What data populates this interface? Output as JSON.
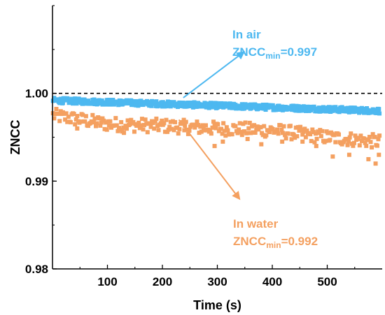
{
  "chart_data": {
    "type": "scatter",
    "xlabel": "Time (s)",
    "ylabel": "ZNCC",
    "xlim": [
      0,
      600
    ],
    "ylim": [
      0.98,
      1.01
    ],
    "x_ticks": [
      100,
      200,
      300,
      400,
      500
    ],
    "x_tick_labels": [
      "100",
      "200",
      "300",
      "400",
      "500"
    ],
    "y_ticks": [
      0.98,
      0.99,
      1.0
    ],
    "y_tick_labels": [
      "0.98",
      "0.99",
      "1.00"
    ],
    "reference_line": {
      "y": 1.0,
      "style": "dashed",
      "color": "#000000"
    },
    "series": [
      {
        "key": "air",
        "color": "#4db8f0",
        "marker": "square",
        "trend": [
          [
            0,
            0.9992
          ],
          [
            100,
            0.999
          ],
          [
            200,
            0.9988
          ],
          [
            300,
            0.9986
          ],
          [
            400,
            0.9984
          ],
          [
            500,
            0.9982
          ],
          [
            595,
            0.998
          ]
        ],
        "noise_amplitude": 0.0003,
        "x_step": 1,
        "min_value": 0.997
      },
      {
        "key": "water",
        "color": "#f4a060",
        "marker": "square",
        "trend": [
          [
            0,
            0.9975
          ],
          [
            100,
            0.9965
          ],
          [
            200,
            0.9963
          ],
          [
            300,
            0.996
          ],
          [
            400,
            0.9958
          ],
          [
            500,
            0.995
          ],
          [
            595,
            0.9945
          ]
        ],
        "noise_amplitude": 0.0008,
        "x_step": 2,
        "dips": [
          [
            45,
            0.996
          ],
          [
            130,
            0.9955
          ],
          [
            240,
            0.9958
          ],
          [
            295,
            0.994
          ],
          [
            310,
            0.9945
          ],
          [
            355,
            0.9948
          ],
          [
            380,
            0.9942
          ],
          [
            418,
            0.9945
          ],
          [
            455,
            0.9945
          ],
          [
            480,
            0.994
          ],
          [
            510,
            0.9928
          ],
          [
            540,
            0.993
          ],
          [
            575,
            0.9925
          ],
          [
            588,
            0.992
          ],
          [
            594,
            0.993
          ]
        ],
        "min_value": 0.992
      }
    ],
    "annotations": [
      {
        "key": "air",
        "color": "#4db8f0",
        "line1": "In air",
        "label_main": "ZNCC",
        "label_sub": "min",
        "label_value": "=0.997",
        "arrow_from": [
          238,
          0.9995
        ],
        "arrow_to": [
          348,
          1.0047
        ]
      },
      {
        "key": "water",
        "color": "#f4a060",
        "line1": "In water",
        "label_main": "ZNCC",
        "label_sub": "min",
        "label_value": "=0.992",
        "arrow_from": [
          230,
          0.997
        ],
        "arrow_to": [
          340,
          0.988
        ]
      }
    ]
  }
}
